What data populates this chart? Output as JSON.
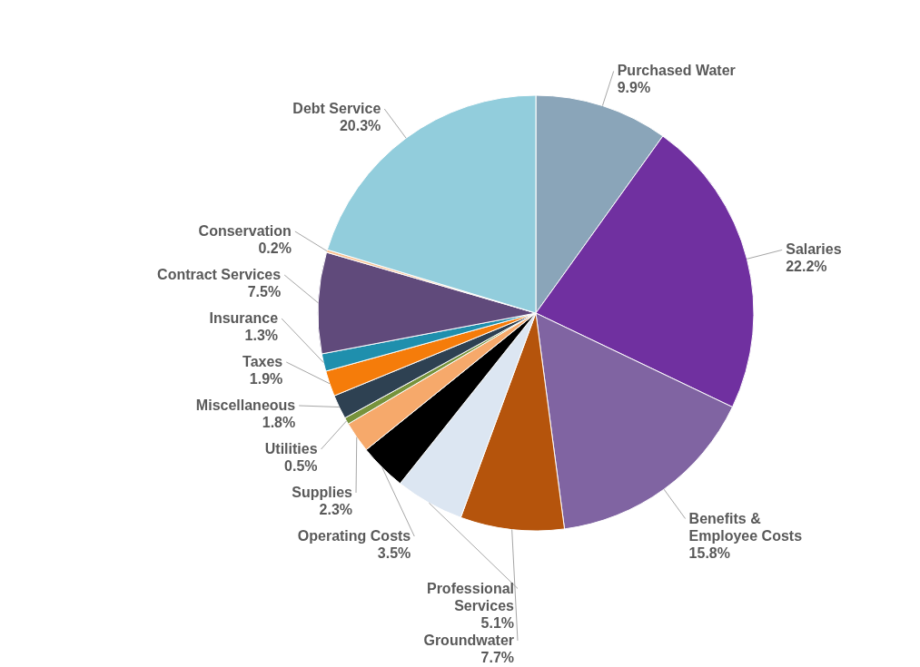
{
  "chart_data": {
    "type": "pie",
    "categories": [
      "Purchased Water",
      "Salaries",
      "Benefits & Employee Costs",
      "Groundwater",
      "Professional Services",
      "Operating Costs",
      "Supplies",
      "Utilities",
      "Miscellaneous",
      "Taxes",
      "Insurance",
      "Contract Services",
      "Conservation",
      "Debt Service"
    ],
    "values": [
      9.9,
      22.2,
      15.8,
      7.7,
      5.1,
      3.5,
      2.3,
      0.5,
      1.8,
      1.9,
      1.3,
      7.5,
      0.2,
      20.3
    ],
    "colors": [
      "#8aa5b9",
      "#7030a0",
      "#8064a2",
      "#b5540c",
      "#dce6f2",
      "#000000",
      "#f6a96b",
      "#77933c",
      "#2e4152",
      "#f57c0a",
      "#1f8fad",
      "#604a7b",
      "#fac090",
      "#92cddc"
    ],
    "value_labels": [
      "9.9%",
      "22.2%",
      "15.8%",
      "7.7%",
      "5.1%",
      "3.5%",
      "2.3%",
      "0.5%",
      "1.8%",
      "1.9%",
      "1.3%",
      "7.5%",
      "0.2%",
      "20.3%"
    ]
  }
}
